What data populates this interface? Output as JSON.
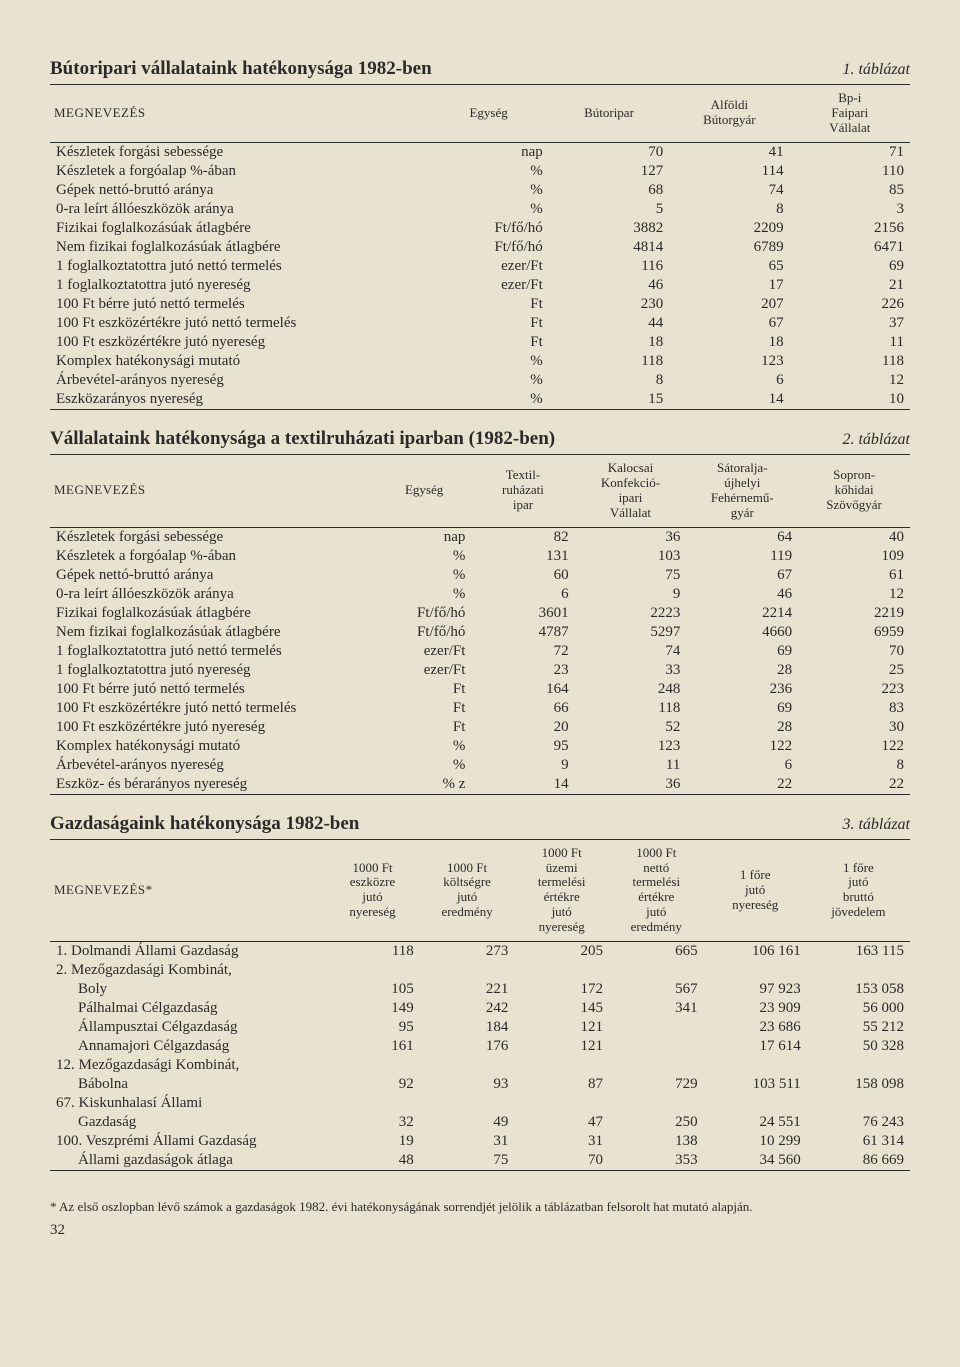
{
  "table1": {
    "title": "Bútoripari vállalataink hatékonysága 1982-ben",
    "label": "1. táblázat",
    "headers": [
      "MEGNEVEZÉS",
      "Egység",
      "Bútoripar",
      "Alföldi\nBútorgyár",
      "Bp-i\nFaipari\nVállalat"
    ],
    "rows": [
      [
        "Készletek forgási sebessége",
        "nap",
        "70",
        "41",
        "71"
      ],
      [
        "Készletek a forgóalap %-ában",
        "%",
        "127",
        "114",
        "110"
      ],
      [
        "Gépek nettó-bruttó aránya",
        "%",
        "68",
        "74",
        "85"
      ],
      [
        "0-ra leírt állóeszközök aránya",
        "%",
        "5",
        "8",
        "3"
      ],
      [
        "Fizikai foglalkozásúak átlagbére",
        "Ft/fő/hó",
        "3882",
        "2209",
        "2156"
      ],
      [
        "Nem fizikai foglalkozásúak átlagbére",
        "Ft/fő/hó",
        "4814",
        "6789",
        "6471"
      ],
      [
        "1 foglalkoztatottra jutó nettó termelés",
        "ezer/Ft",
        "116",
        "65",
        "69"
      ],
      [
        "1 foglalkoztatottra jutó nyereség",
        "ezer/Ft",
        "46",
        "17",
        "21"
      ],
      [
        "100 Ft bérre jutó nettó termelés",
        "Ft",
        "230",
        "207",
        "226"
      ],
      [
        "100 Ft eszközértékre jutó nettó termelés",
        "Ft",
        "44",
        "67",
        "37"
      ],
      [
        "100 Ft eszközértékre jutó nyereség",
        "Ft",
        "18",
        "18",
        "11"
      ],
      [
        "Komplex hatékonysági mutató",
        "%",
        "118",
        "123",
        "118"
      ],
      [
        "Árbevétel-arányos nyereség",
        "%",
        "8",
        "6",
        "12"
      ],
      [
        "Eszközarányos nyereség",
        "%",
        "15",
        "14",
        "10"
      ]
    ]
  },
  "table2": {
    "title": "Vállalataink hatékonysága a textilruházati iparban (1982-ben)",
    "label": "2. táblázat",
    "headers": [
      "MEGNEVEZÉS",
      "Egység",
      "Textil-\nruházati\nipar",
      "Kalocsai\nKonfekció-\nipari\nVállalat",
      "Sátoralja-\nújhelyi\nFehérnemű-\ngyár",
      "Sopron-\nkőhidai\nSzövőgyár"
    ],
    "rows": [
      [
        "Készletek forgási sebessége",
        "nap",
        "82",
        "36",
        "64",
        "40"
      ],
      [
        "Készletek a forgóalap %-ában",
        "%",
        "131",
        "103",
        "119",
        "109"
      ],
      [
        "Gépek nettó-bruttó aránya",
        "%",
        "60",
        "75",
        "67",
        "61"
      ],
      [
        "0-ra leírt állóeszközök aránya",
        "%",
        "6",
        "9",
        "46",
        "12"
      ],
      [
        "Fizikai foglalkozásúak átlagbére",
        "Ft/fő/hó",
        "3601",
        "2223",
        "2214",
        "2219"
      ],
      [
        "Nem fizikai foglalkozásúak átlagbére",
        "Ft/fő/hó",
        "4787",
        "5297",
        "4660",
        "6959"
      ],
      [
        "1 foglalkoztatottra jutó nettó termelés",
        "ezer/Ft",
        "72",
        "74",
        "69",
        "70"
      ],
      [
        "1 foglalkoztatottra jutó nyereség",
        "ezer/Ft",
        "23",
        "33",
        "28",
        "25"
      ],
      [
        "100 Ft bérre jutó nettó termelés",
        "Ft",
        "164",
        "248",
        "236",
        "223"
      ],
      [
        "100 Ft eszközértékre jutó nettó termelés",
        "Ft",
        "66",
        "118",
        "69",
        "83"
      ],
      [
        "100 Ft eszközértékre jutó nyereség",
        "Ft",
        "20",
        "52",
        "28",
        "30"
      ],
      [
        "Komplex hatékonysági mutató",
        "%",
        "95",
        "123",
        "122",
        "122"
      ],
      [
        "Árbevétel-arányos nyereség",
        "%",
        "9",
        "11",
        "6",
        "8"
      ],
      [
        "Eszköz- és bérarányos nyereség",
        "% z",
        "14",
        "36",
        "22",
        "22"
      ]
    ]
  },
  "table3": {
    "title": "Gazdaságaink hatékonysága 1982-ben",
    "label": "3. táblázat",
    "headers": [
      "MEGNEVEZÉS*",
      "1000 Ft\neszközre\njutó\nnyereség",
      "1000 Ft\nköltségre\njutó\neredmény",
      "1000 Ft\nüzemi\ntermelési\nértékre\njutó\nnyereség",
      "1000 Ft\nnettó\ntermelési\nértékre\njutó\neredmény",
      "1 főre\njutó\nnyereség",
      "1 főre\njutó\nbruttó\njövedelem"
    ],
    "items": [
      {
        "indent": false,
        "cells": [
          "1. Dolmandi Állami Gazdaság",
          "118",
          "273",
          "205",
          "665",
          "106 161",
          "163 115"
        ]
      },
      {
        "indent": false,
        "cells": [
          "2. Mezőgazdasági Kombinát,",
          "",
          "",
          "",
          "",
          "",
          ""
        ]
      },
      {
        "indent": true,
        "cells": [
          "Boly",
          "105",
          "221",
          "172",
          "567",
          "97 923",
          "153 058"
        ]
      },
      {
        "indent": true,
        "cells": [
          "Pálhalmai Célgazdaság",
          "149",
          "242",
          "145",
          "341",
          "23 909",
          "56 000"
        ]
      },
      {
        "indent": true,
        "cells": [
          "Állampusztai Célgazdaság",
          "95",
          "184",
          "121",
          "",
          "23 686",
          "55 212"
        ]
      },
      {
        "indent": true,
        "cells": [
          "Annamajori Célgazdaság",
          "161",
          "176",
          "121",
          "",
          "17 614",
          "50 328"
        ]
      },
      {
        "indent": false,
        "cells": [
          "12. Mezőgazdasági Kombinát,",
          "",
          "",
          "",
          "",
          "",
          ""
        ]
      },
      {
        "indent": true,
        "cells": [
          "Bábolna",
          "92",
          "93",
          "87",
          "729",
          "103 511",
          "158 098"
        ]
      },
      {
        "indent": false,
        "cells": [
          "67. Kiskunhalasí Állami",
          "",
          "",
          "",
          "",
          "",
          ""
        ]
      },
      {
        "indent": true,
        "cells": [
          "Gazdaság",
          "32",
          "49",
          "47",
          "250",
          "24 551",
          "76 243"
        ]
      },
      {
        "indent": false,
        "cells": [
          "100. Veszprémi Állami Gazdaság",
          "19",
          "31",
          "31",
          "138",
          "10 299",
          "61 314"
        ]
      },
      {
        "indent": true,
        "cells": [
          "Állami gazdaságok átlaga",
          "48",
          "75",
          "70",
          "353",
          "34 560",
          "86 669"
        ]
      }
    ]
  },
  "footnote": "* Az első oszlopban lévő számok a gazdaságok 1982. évi hatékonyságának sorrendjét jelölik a táblázatban felsorolt hat mutató alapján.",
  "pagenum": "32"
}
